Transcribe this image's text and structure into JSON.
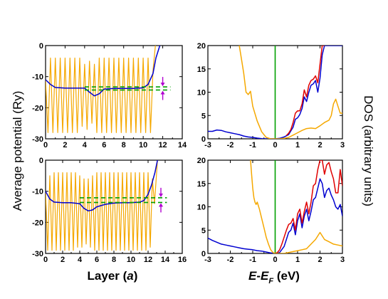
{
  "labels": {
    "ylabel_left": "Average potential (Ry)",
    "ylabel_right": "DOS (arbitrary units)",
    "xlabel_left_main": "Layer (",
    "xlabel_left_italic": "a",
    "xlabel_left_close": ")",
    "xlabel_right_e": "E",
    "xlabel_right_dash": "-",
    "xlabel_right_ef": "E",
    "xlabel_right_sub": "F",
    "xlabel_right_unit": " (eV)"
  },
  "colors": {
    "oscillating": "#f5a800",
    "average": "#0000d0",
    "fermi_line": "#00a000",
    "arrows": "#b000d0",
    "dos_red": "#e00000",
    "dos_blue": "#0000d0",
    "dos_orange": "#f5a800"
  },
  "chart_data": [
    {
      "type": "line",
      "panel": "top-left",
      "xlim": [
        0,
        14
      ],
      "ylim": [
        -30,
        0
      ],
      "xticks": [
        "0",
        "2",
        "4",
        "6",
        "8",
        "10",
        "12",
        "14"
      ],
      "yticks": [
        "-30",
        "-20",
        "-10",
        "0"
      ],
      "series": [
        {
          "role": "oscillating-potential",
          "color": "#f5a800",
          "x": [
            0,
            0.25,
            0.5,
            0.75,
            1,
            1.25,
            1.5,
            1.75,
            2,
            2.25,
            2.5,
            2.75,
            3,
            3.25,
            3.5,
            3.75,
            4,
            4.25,
            4.5,
            4.75,
            5,
            5.25,
            5.5,
            5.75,
            6,
            6.25,
            6.5,
            6.75,
            7,
            7.25,
            7.5,
            7.75,
            8,
            8.25,
            8.5,
            8.75,
            9,
            9.25,
            9.5,
            9.75,
            10,
            10.25,
            10.5,
            10.75,
            11,
            11.25
          ],
          "y": [
            -11,
            -28,
            -4,
            -28,
            -4,
            -28,
            -4,
            -28,
            -4,
            -28,
            -4,
            -28,
            -4,
            -28,
            -4,
            -26,
            -6,
            -27,
            -5,
            -25,
            -6,
            -28,
            -4,
            -28,
            -4,
            -28,
            -4,
            -28,
            -4,
            -28,
            -4,
            -28,
            -4,
            -28,
            -4,
            -28,
            -4,
            -28,
            -4,
            -28,
            -4,
            -28,
            -4,
            -28,
            -8,
            0
          ]
        },
        {
          "role": "average-potential",
          "color": "#0000d0",
          "x": [
            0,
            0.5,
            1,
            2,
            3,
            4,
            4.5,
            5,
            5.5,
            6,
            7,
            8,
            9,
            10,
            10.5,
            11,
            11.3,
            11.7
          ],
          "y": [
            -11,
            -12.5,
            -13.5,
            -13.7,
            -13.7,
            -13.7,
            -15,
            -16.2,
            -15.5,
            -14,
            -13.8,
            -13.8,
            -13.8,
            -13.6,
            -12.5,
            -9,
            -4,
            0
          ]
        },
        {
          "role": "fermi-level",
          "color": "#00a000",
          "dashed": true,
          "x": [
            4,
            12.8
          ],
          "y": [
            -13.3,
            -13.3
          ]
        },
        {
          "role": "bulk-level",
          "color": "#00a000",
          "dashed": true,
          "x": [
            4,
            12.8
          ],
          "y": [
            -14.3,
            -14.3
          ]
        }
      ]
    },
    {
      "type": "line",
      "panel": "bottom-left",
      "xlim": [
        0,
        16
      ],
      "ylim": [
        -30,
        0
      ],
      "xticks": [
        "0",
        "2",
        "4",
        "6",
        "8",
        "10",
        "12",
        "14",
        "16"
      ],
      "yticks": [
        "-30",
        "-20",
        "-10",
        "0"
      ],
      "series": [
        {
          "role": "oscillating-potential",
          "color": "#f5a800",
          "x": [
            0,
            0.25,
            0.5,
            0.75,
            1,
            1.25,
            1.5,
            1.75,
            2,
            2.25,
            2.5,
            2.75,
            3,
            3.25,
            3.5,
            3.75,
            4,
            4.25,
            4.5,
            4.75,
            5,
            5.25,
            5.5,
            5.75,
            6,
            6.25,
            6.5,
            6.75,
            7,
            7.25,
            7.5,
            7.75,
            8,
            8.25,
            8.5,
            8.75,
            9,
            9.25,
            9.5,
            9.75,
            10,
            10.25,
            10.5,
            10.75,
            11,
            11.25,
            11.5,
            11.75,
            12,
            12.25,
            12.5,
            12.75,
            13.1
          ],
          "y": [
            -10,
            -29,
            -5,
            -29,
            -4,
            -29,
            -4,
            -29,
            -4,
            -29,
            -4,
            -29,
            -4,
            -29,
            -4,
            -28,
            -5,
            -28,
            -6,
            -27,
            -6,
            -28,
            -5,
            -29,
            -4,
            -29,
            -4,
            -29,
            -4,
            -29,
            -4,
            -29,
            -4,
            -29,
            -4,
            -29,
            -4,
            -29,
            -4,
            -29,
            -4,
            -29,
            -4,
            -29,
            -4,
            -29,
            -4,
            -29,
            -4,
            -28,
            -6,
            -14,
            0
          ]
        },
        {
          "role": "average-potential",
          "color": "#0000d0",
          "x": [
            0,
            0.5,
            1,
            2,
            3,
            4,
            4.5,
            5,
            5.5,
            6,
            7,
            8,
            9,
            10,
            11,
            11.5,
            12,
            12.4,
            12.8,
            13.1
          ],
          "y": [
            -10,
            -12.5,
            -13.5,
            -13.7,
            -13.7,
            -14,
            -15.5,
            -16.3,
            -16,
            -15,
            -14.2,
            -13.8,
            -13.7,
            -13.7,
            -13.5,
            -13,
            -11,
            -8,
            -4,
            0
          ]
        },
        {
          "role": "fermi-level",
          "color": "#00a000",
          "dashed": true,
          "x": [
            4,
            14.2
          ],
          "y": [
            -12.1,
            -12.1
          ]
        },
        {
          "role": "bulk-level",
          "color": "#00a000",
          "dashed": true,
          "x": [
            4,
            14.2
          ],
          "y": [
            -13.6,
            -13.6
          ]
        }
      ]
    },
    {
      "type": "line",
      "panel": "top-right",
      "xlim": [
        -3,
        3
      ],
      "ylim": [
        0,
        20
      ],
      "xticks": [
        "-3",
        "-2",
        "-1",
        "0",
        "1",
        "2",
        "3"
      ],
      "yticks": [
        "0",
        "5",
        "10",
        "15",
        "20"
      ],
      "series": [
        {
          "role": "dos-blue",
          "color": "#0000d0",
          "x": [
            -3,
            -2.8,
            -2.6,
            -2.4,
            -2.2,
            -2,
            -1.8,
            -1.6,
            -1.4,
            -1.2,
            -1,
            -0.8,
            -0.6,
            -0.4,
            -0.2,
            0,
            0.2,
            0.4,
            0.6,
            0.8,
            0.9,
            1,
            1.1,
            1.2,
            1.3,
            1.4,
            1.5,
            1.6,
            1.7,
            1.8,
            1.9,
            2,
            2.1,
            2.2,
            2.3,
            2.4,
            2.5,
            2.6,
            2.7,
            2.8,
            2.9,
            3
          ],
          "y": [
            1.6,
            1.6,
            1.9,
            1.8,
            1.5,
            1.3,
            1.1,
            0.9,
            0.6,
            0.4,
            0.3,
            0.15,
            0.05,
            0,
            0,
            0,
            0.1,
            0.4,
            0.9,
            2.5,
            4.2,
            4.5,
            5.2,
            6.5,
            9,
            8,
            10,
            11.5,
            11.8,
            12.5,
            10,
            13,
            18,
            20,
            20,
            20,
            20,
            20,
            20,
            20,
            20,
            20
          ]
        },
        {
          "role": "dos-red",
          "color": "#e00000",
          "x": [
            0.5,
            0.6,
            0.7,
            0.8,
            0.9,
            1,
            1.1,
            1.2,
            1.3,
            1.4,
            1.5,
            1.6,
            1.7,
            1.8,
            1.9,
            2,
            2.1,
            2.2
          ],
          "y": [
            0.7,
            1.2,
            2,
            3.5,
            5.5,
            6,
            6,
            7.5,
            10.5,
            9,
            11.5,
            12.5,
            12.8,
            13.5,
            12,
            16,
            20,
            20
          ]
        },
        {
          "role": "dos-orange",
          "color": "#f5a800",
          "x": [
            -1.6,
            -1.5,
            -1.4,
            -1.3,
            -1.2,
            -1.1,
            -1,
            -0.8,
            -0.6,
            -0.4,
            -0.2,
            0,
            0.2,
            0.4,
            0.6,
            0.8,
            1,
            1.2,
            1.4,
            1.6,
            1.8,
            2,
            2.2,
            2.4,
            2.5,
            2.6,
            2.7,
            2.8,
            2.9,
            3
          ],
          "y": [
            20,
            17,
            14,
            10,
            9.5,
            10.2,
            7,
            3.8,
            1.5,
            0.3,
            0,
            0,
            0,
            0.1,
            0.3,
            0.8,
            1.3,
            1.8,
            2.2,
            2.3,
            2.2,
            2.8,
            3.5,
            4,
            5,
            7.5,
            8.5,
            7,
            5.5,
            5.5
          ]
        }
      ],
      "fermi_x": 0
    },
    {
      "type": "line",
      "panel": "bottom-right",
      "xlim": [
        -3,
        3
      ],
      "ylim": [
        0,
        20
      ],
      "xticks": [
        "-3",
        "-2",
        "-1",
        "0",
        "1",
        "2",
        "3"
      ],
      "yticks": [
        "0",
        "5",
        "10",
        "15",
        "20"
      ],
      "series": [
        {
          "role": "dos-blue",
          "color": "#0000d0",
          "x": [
            -3,
            -2.8,
            -2.6,
            -2.4,
            -2.2,
            -2,
            -1.8,
            -1.6,
            -1.4,
            -1.2,
            -1,
            -0.8,
            -0.6,
            -0.4,
            -0.2,
            0,
            0.2,
            0.4,
            0.5,
            0.6,
            0.7,
            0.8,
            0.9,
            1,
            1.1,
            1.2,
            1.3,
            1.4,
            1.5,
            1.6,
            1.7,
            1.8,
            1.9,
            2,
            2.1,
            2.2,
            2.3,
            2.4,
            2.5,
            2.6,
            2.7,
            2.8,
            2.9,
            3
          ],
          "y": [
            3.3,
            2.8,
            2.4,
            2,
            1.8,
            1.6,
            1.4,
            1.2,
            1,
            0.9,
            0.8,
            0.6,
            0.5,
            0.3,
            0.1,
            0,
            0.2,
            1.5,
            3,
            4.5,
            5,
            6.5,
            4,
            7,
            8.5,
            5.5,
            8,
            9.5,
            7,
            9,
            11.5,
            12,
            14,
            16,
            15,
            12,
            13.5,
            14,
            12.5,
            11.5,
            10,
            9.5,
            10.5,
            8
          ]
        },
        {
          "role": "dos-red",
          "color": "#e00000",
          "x": [
            0,
            0.1,
            0.2,
            0.3,
            0.4,
            0.5,
            0.6,
            0.7,
            0.8,
            0.9,
            1,
            1.1,
            1.2,
            1.3,
            1.4,
            1.5,
            1.6,
            1.7,
            1.8,
            1.9,
            2,
            2.1,
            2.2,
            2.3,
            2.4,
            2.5,
            2.6,
            2.7,
            2.8,
            2.9,
            3
          ],
          "y": [
            0,
            0.2,
            0.8,
            2,
            3.5,
            5,
            6.2,
            6.5,
            7.5,
            5,
            8.5,
            9.5,
            6.5,
            9,
            11,
            8.5,
            11,
            14.5,
            15,
            18,
            20,
            20,
            17,
            19,
            19.5,
            17.5,
            16,
            13,
            13,
            18,
            14.5
          ]
        },
        {
          "role": "dos-orange",
          "color": "#f5a800",
          "x": [
            -1.1,
            -1.05,
            -1,
            -0.95,
            -0.9,
            -0.85,
            -0.8,
            -0.7,
            -0.6,
            -0.5,
            -0.4,
            -0.3,
            -0.2,
            -0.1,
            0,
            0.2,
            0.4,
            0.6,
            0.8,
            1,
            1.2,
            1.4,
            1.6,
            1.8,
            2,
            2.2,
            2.4,
            2.6,
            2.8,
            3
          ],
          "y": [
            20,
            17,
            14,
            12,
            11,
            10.5,
            11,
            9.5,
            7.5,
            5.5,
            3.5,
            2,
            0.8,
            0.2,
            0,
            0,
            0,
            0.2,
            0.4,
            0.6,
            0.8,
            1,
            2,
            3,
            4.5,
            3,
            2.5,
            2,
            1.8,
            1.6
          ]
        }
      ],
      "fermi_x": 0
    }
  ]
}
